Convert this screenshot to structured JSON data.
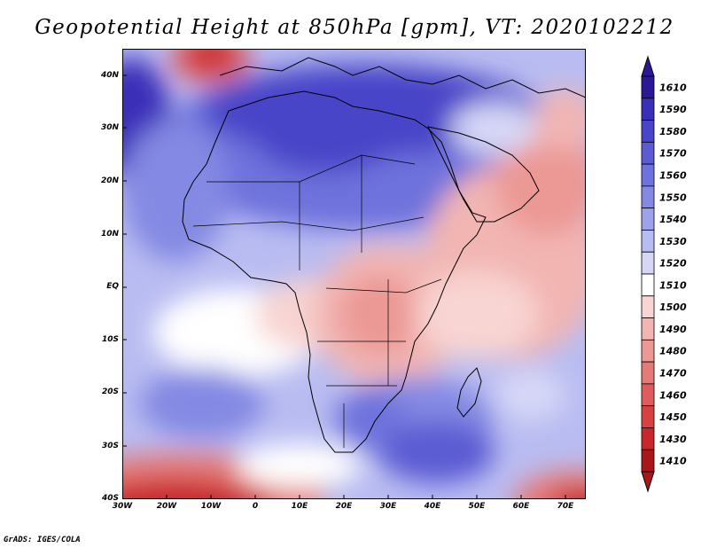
{
  "title": "Geopotential Height at 850hPa [gpm], VT: 2020102212",
  "footer": "GrADS: IGES/COLA",
  "axes": {
    "lat_labels": [
      "40N",
      "30N",
      "20N",
      "10N",
      "EQ",
      "10S",
      "20S",
      "30S",
      "40S"
    ],
    "lon_labels": [
      "30W",
      "20W",
      "10W",
      "0",
      "10E",
      "20E",
      "30E",
      "40E",
      "50E",
      "60E",
      "70E"
    ]
  },
  "legend": {
    "levels": [
      "1610",
      "1590",
      "1580",
      "1570",
      "1560",
      "1550",
      "1540",
      "1530",
      "1520",
      "1510",
      "1500",
      "1490",
      "1480",
      "1470",
      "1460",
      "1450",
      "1430",
      "1410"
    ],
    "colors": [
      "#2b1896",
      "#3a2fb8",
      "#4a44c8",
      "#5b5cd3",
      "#6e72dc",
      "#8489e3",
      "#9ea2ea",
      "#b9bcf1",
      "#d6d7f7",
      "#ffffff",
      "#f8d4d2",
      "#f2b5b2",
      "#ec9894",
      "#e57b78",
      "#de5d5c",
      "#d64242",
      "#c82829",
      "#a8181a"
    ]
  }
}
